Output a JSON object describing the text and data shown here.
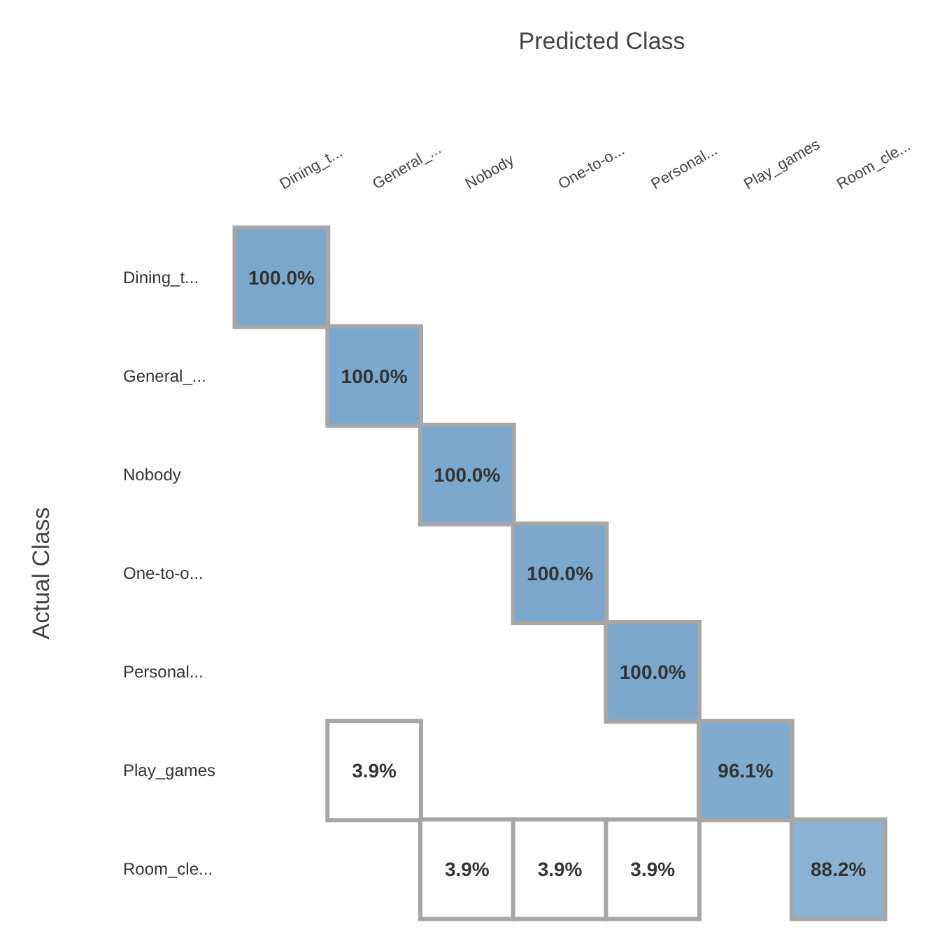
{
  "chart_data": {
    "type": "heatmap",
    "xlabel": "Predicted Class",
    "ylabel": "Actual Class",
    "categories": [
      "Dining_t...",
      "General_...",
      "Nobody",
      "One-to-o...",
      "Personal...",
      "Play_games",
      "Room_cle..."
    ],
    "y_categories": [
      "Dining_t...",
      "General_...",
      "Nobody",
      "One-to-o...",
      "Personal...",
      "Play_games",
      "Room_cle..."
    ],
    "cells": [
      [
        100,
        null,
        null,
        null,
        null,
        null,
        null
      ],
      [
        null,
        100,
        null,
        null,
        null,
        null,
        null
      ],
      [
        null,
        null,
        100,
        null,
        null,
        null,
        null
      ],
      [
        null,
        null,
        null,
        100,
        null,
        null,
        null
      ],
      [
        null,
        null,
        null,
        null,
        100,
        null,
        null
      ],
      [
        null,
        3.9,
        null,
        null,
        null,
        96.1,
        null
      ],
      [
        null,
        null,
        3.9,
        3.9,
        3.9,
        null,
        88.2
      ]
    ],
    "cell_labels": [
      [
        "100.0%",
        null,
        null,
        null,
        null,
        null,
        null
      ],
      [
        null,
        "100.0%",
        null,
        null,
        null,
        null,
        null
      ],
      [
        null,
        null,
        "100.0%",
        null,
        null,
        null,
        null
      ],
      [
        null,
        null,
        null,
        "100.0%",
        null,
        null,
        null
      ],
      [
        null,
        null,
        null,
        null,
        "100.0%",
        null,
        null
      ],
      [
        null,
        "3.9%",
        null,
        null,
        null,
        "96.1%",
        null
      ],
      [
        null,
        null,
        "3.9%",
        "3.9%",
        "3.9%",
        null,
        "88.2%"
      ]
    ],
    "color": "#7ba7cc"
  }
}
